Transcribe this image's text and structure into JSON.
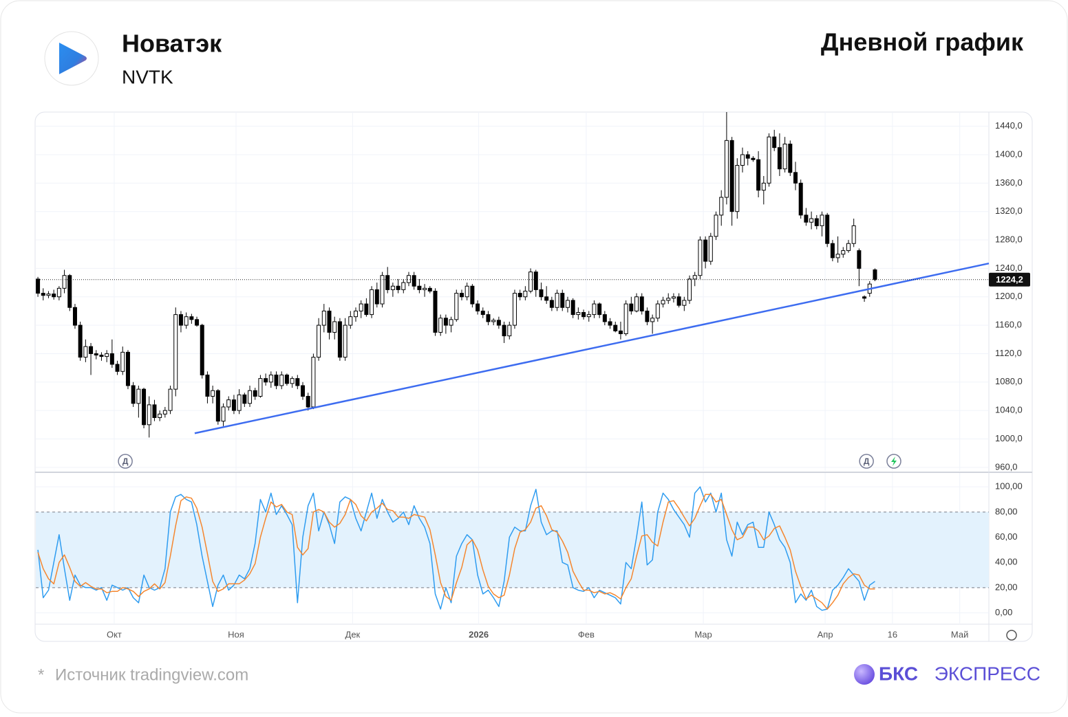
{
  "header": {
    "title": "Новатэк",
    "ticker": "NVTK",
    "subtitle": "Дневной график"
  },
  "footer": {
    "asterisk": "*",
    "source": "Источник tradingview.com",
    "brand_bold": "БКС",
    "brand": "ЭКСПРЕСС"
  },
  "chart_data": [
    {
      "type": "candlestick",
      "up_color": "#ffffff",
      "down_color": "#000000",
      "xlim": [
        -0.4,
        179.5
      ],
      "ylim": [
        955,
        1460
      ],
      "grid": true,
      "xticks": [
        {
          "value": 14.4,
          "label": "Окт"
        },
        {
          "value": 37.4,
          "label": "Ноя"
        },
        {
          "value": 59.4,
          "label": "Дек"
        },
        {
          "value": 83.2,
          "label": "2026"
        },
        {
          "value": 103.5,
          "label": "Фев"
        },
        {
          "value": 125.6,
          "label": "Мар"
        },
        {
          "value": 148.6,
          "label": "Апр"
        },
        {
          "value": 161.3,
          "label": "16"
        },
        {
          "value": 174,
          "label": "Май"
        }
      ],
      "yticks": [
        {
          "value": 960,
          "label": "960,0"
        },
        {
          "value": 1000,
          "label": "1000,0"
        },
        {
          "value": 1040,
          "label": "1040,0"
        },
        {
          "value": 1080,
          "label": "1080,0"
        },
        {
          "value": 1120,
          "label": "1120,0"
        },
        {
          "value": 1160,
          "label": "1160,0"
        },
        {
          "value": 1200,
          "label": "1200,0"
        },
        {
          "value": 1240,
          "label": "1240,0"
        },
        {
          "value": 1280,
          "label": "1280,0"
        },
        {
          "value": 1320,
          "label": "1320,0"
        },
        {
          "value": 1360,
          "label": "1360,0"
        },
        {
          "value": 1400,
          "label": "1400,0"
        },
        {
          "value": 1440,
          "label": "1440,0"
        }
      ],
      "last_value": {
        "value": 1224.2,
        "label": "1224,2"
      },
      "trendline": {
        "x": [
          29.6,
          179.5
        ],
        "y": [
          1008,
          1247
        ],
        "color": "#3d6cf0"
      },
      "markers": [
        {
          "label": "Д",
          "x": 16.5
        },
        {
          "label": "Д",
          "x": 156.4
        }
      ],
      "open": [
        1225,
        1205,
        1202,
        1204,
        1200,
        1212,
        1230,
        1185,
        1160,
        1115,
        1130,
        1120,
        1118,
        1116,
        1120,
        1105,
        1095,
        1122,
        1075,
        1050,
        1070,
        1020,
        1048,
        1030,
        1035,
        1040,
        1070,
        1175,
        1160,
        1172,
        1168,
        1160,
        1090,
        1060,
        1068,
        1025,
        1045,
        1055,
        1040,
        1062,
        1050,
        1068,
        1060,
        1085,
        1080,
        1090,
        1075,
        1090,
        1078,
        1085,
        1075,
        1060,
        1045,
        1115,
        1160,
        1180,
        1150,
        1165,
        1115,
        1160,
        1172,
        1180,
        1190,
        1175,
        1210,
        1190,
        1230,
        1210,
        1215,
        1210,
        1220,
        1230,
        1215,
        1210,
        1212,
        1208,
        1150,
        1170,
        1160,
        1168,
        1205,
        1200,
        1215,
        1190,
        1180,
        1175,
        1165,
        1167,
        1160,
        1145,
        1160,
        1205,
        1200,
        1208,
        1235,
        1210,
        1200,
        1195,
        1185,
        1205,
        1185,
        1195,
        1175,
        1178,
        1172,
        1175,
        1190,
        1175,
        1165,
        1160,
        1152,
        1148,
        1190,
        1180,
        1200,
        1180,
        1165,
        1170,
        1190,
        1195,
        1198,
        1200,
        1188,
        1195,
        1225,
        1230,
        1280,
        1250,
        1285,
        1315,
        1340,
        1420,
        1320,
        1385,
        1400,
        1395,
        1393,
        1350,
        1360,
        1425,
        1410,
        1380,
        1415,
        1375,
        1360,
        1315,
        1305,
        1310,
        1300,
        1315,
        1275,
        1255,
        1260,
        1265,
        1275,
        1265,
        1200,
        1205,
        1238
      ],
      "high": [
        1228,
        1212,
        1208,
        1210,
        1215,
        1238,
        1232,
        1190,
        1165,
        1140,
        1135,
        1125,
        1122,
        1125,
        1140,
        1110,
        1130,
        1125,
        1080,
        1075,
        1072,
        1060,
        1055,
        1040,
        1045,
        1075,
        1185,
        1180,
        1178,
        1176,
        1172,
        1162,
        1095,
        1075,
        1070,
        1050,
        1060,
        1062,
        1070,
        1065,
        1075,
        1072,
        1090,
        1092,
        1095,
        1095,
        1095,
        1092,
        1088,
        1090,
        1080,
        1065,
        1120,
        1170,
        1190,
        1185,
        1172,
        1170,
        1170,
        1180,
        1185,
        1195,
        1198,
        1215,
        1220,
        1235,
        1242,
        1220,
        1225,
        1225,
        1235,
        1235,
        1225,
        1218,
        1215,
        1212,
        1175,
        1175,
        1172,
        1210,
        1210,
        1220,
        1218,
        1195,
        1185,
        1180,
        1170,
        1172,
        1165,
        1165,
        1210,
        1210,
        1215,
        1240,
        1238,
        1220,
        1215,
        1200,
        1210,
        1210,
        1200,
        1198,
        1185,
        1182,
        1180,
        1195,
        1192,
        1180,
        1170,
        1165,
        1165,
        1195,
        1200,
        1205,
        1205,
        1185,
        1175,
        1195,
        1200,
        1205,
        1205,
        1205,
        1200,
        1230,
        1235,
        1285,
        1285,
        1290,
        1320,
        1350,
        1460,
        1425,
        1395,
        1410,
        1405,
        1398,
        1405,
        1370,
        1430,
        1435,
        1430,
        1425,
        1420,
        1390,
        1365,
        1325,
        1320,
        1315,
        1320,
        1318,
        1280,
        1285,
        1270,
        1280,
        1310,
        1268,
        1202,
        1222,
        1240
      ],
      "low": [
        1200,
        1195,
        1198,
        1196,
        1195,
        1205,
        1180,
        1155,
        1110,
        1108,
        1090,
        1112,
        1110,
        1108,
        1100,
        1090,
        1090,
        1070,
        1045,
        1030,
        1015,
        1002,
        1025,
        1025,
        1030,
        1035,
        1060,
        1150,
        1155,
        1162,
        1158,
        1085,
        1050,
        1050,
        1020,
        1018,
        1040,
        1035,
        1035,
        1045,
        1045,
        1055,
        1058,
        1075,
        1072,
        1070,
        1070,
        1075,
        1072,
        1070,
        1055,
        1040,
        1042,
        1110,
        1150,
        1140,
        1140,
        1110,
        1110,
        1155,
        1165,
        1170,
        1172,
        1170,
        1185,
        1185,
        1205,
        1200,
        1205,
        1205,
        1215,
        1210,
        1205,
        1200,
        1205,
        1145,
        1145,
        1148,
        1150,
        1165,
        1195,
        1195,
        1185,
        1175,
        1170,
        1160,
        1160,
        1155,
        1135,
        1140,
        1155,
        1195,
        1195,
        1205,
        1200,
        1195,
        1190,
        1180,
        1180,
        1180,
        1178,
        1170,
        1168,
        1168,
        1165,
        1170,
        1170,
        1160,
        1155,
        1150,
        1140,
        1145,
        1175,
        1178,
        1175,
        1160,
        1148,
        1165,
        1185,
        1190,
        1192,
        1185,
        1180,
        1190,
        1215,
        1225,
        1240,
        1245,
        1280,
        1300,
        1330,
        1300,
        1310,
        1375,
        1385,
        1390,
        1340,
        1330,
        1355,
        1405,
        1370,
        1375,
        1370,
        1350,
        1310,
        1300,
        1295,
        1295,
        1285,
        1270,
        1250,
        1248,
        1255,
        1262,
        1270,
        1215,
        1193,
        1200,
        1222
      ],
      "close": [
        1205,
        1202,
        1204,
        1200,
        1212,
        1230,
        1185,
        1160,
        1115,
        1130,
        1120,
        1118,
        1116,
        1120,
        1105,
        1095,
        1122,
        1075,
        1050,
        1070,
        1020,
        1048,
        1030,
        1035,
        1040,
        1070,
        1175,
        1160,
        1172,
        1168,
        1160,
        1090,
        1060,
        1068,
        1025,
        1045,
        1055,
        1040,
        1062,
        1050,
        1068,
        1060,
        1085,
        1080,
        1090,
        1075,
        1090,
        1078,
        1085,
        1075,
        1060,
        1045,
        1115,
        1160,
        1180,
        1150,
        1165,
        1115,
        1160,
        1172,
        1180,
        1190,
        1175,
        1210,
        1190,
        1230,
        1210,
        1215,
        1210,
        1220,
        1230,
        1215,
        1210,
        1212,
        1208,
        1150,
        1170,
        1160,
        1168,
        1205,
        1200,
        1215,
        1190,
        1180,
        1175,
        1165,
        1167,
        1160,
        1145,
        1160,
        1205,
        1200,
        1208,
        1235,
        1210,
        1200,
        1195,
        1185,
        1205,
        1185,
        1195,
        1175,
        1178,
        1172,
        1175,
        1190,
        1175,
        1165,
        1160,
        1152,
        1148,
        1190,
        1180,
        1200,
        1180,
        1165,
        1170,
        1190,
        1195,
        1198,
        1200,
        1188,
        1195,
        1225,
        1230,
        1280,
        1250,
        1285,
        1315,
        1340,
        1420,
        1320,
        1385,
        1400,
        1395,
        1393,
        1350,
        1360,
        1425,
        1410,
        1380,
        1415,
        1375,
        1360,
        1315,
        1305,
        1310,
        1300,
        1315,
        1275,
        1255,
        1260,
        1265,
        1275,
        1300,
        1240,
        1198,
        1218,
        1224.2
      ]
    },
    {
      "type": "line",
      "xlim": [
        -0.4,
        179.5
      ],
      "ylim": [
        -9,
        111
      ],
      "grid": true,
      "band": {
        "values": [
          20,
          80
        ],
        "color": "#e3f2fd"
      },
      "yticks": [
        {
          "value": 0,
          "label": "0,00"
        },
        {
          "value": 20,
          "label": "20,00"
        },
        {
          "value": 40,
          "label": "40,00"
        },
        {
          "value": 60,
          "label": "60,00"
        },
        {
          "value": 80,
          "label": "80,00"
        },
        {
          "value": 100,
          "label": "100,00"
        }
      ],
      "series": [
        {
          "color": "#2e9cf0",
          "values": [
            50,
            12,
            18,
            40,
            62,
            35,
            10,
            30,
            22,
            20,
            20,
            18,
            20,
            10,
            22,
            20,
            18,
            20,
            12,
            8,
            30,
            20,
            18,
            20,
            35,
            80,
            92,
            94,
            90,
            88,
            70,
            45,
            25,
            5,
            22,
            30,
            18,
            22,
            30,
            27,
            35,
            55,
            90,
            80,
            95,
            78,
            85,
            78,
            70,
            8,
            60,
            85,
            95,
            65,
            80,
            70,
            55,
            88,
            92,
            90,
            75,
            65,
            80,
            95,
            75,
            90,
            80,
            72,
            75,
            80,
            70,
            85,
            75,
            68,
            55,
            15,
            3,
            20,
            8,
            45,
            55,
            62,
            58,
            30,
            15,
            18,
            12,
            5,
            25,
            60,
            68,
            65,
            65,
            85,
            98,
            72,
            62,
            65,
            65,
            40,
            38,
            20,
            18,
            17,
            20,
            12,
            18,
            16,
            14,
            12,
            7,
            40,
            35,
            60,
            88,
            38,
            42,
            80,
            95,
            90,
            82,
            76,
            70,
            60,
            95,
            100,
            88,
            95,
            80,
            95,
            58,
            45,
            72,
            62,
            70,
            72,
            52,
            52,
            80,
            70,
            58,
            52,
            40,
            8,
            15,
            10,
            18,
            5,
            2,
            3,
            18,
            22,
            28,
            35,
            30,
            25,
            10,
            22,
            25
          ]
        },
        {
          "color": "#f5862e",
          "values": [
            48,
            35,
            27,
            23,
            40,
            46,
            36,
            25,
            21,
            24,
            21,
            19,
            19,
            16,
            17,
            17,
            20,
            19,
            17,
            13,
            17,
            19,
            23,
            19,
            24,
            45,
            69,
            89,
            92,
            91,
            83,
            68,
            47,
            25,
            17,
            19,
            23,
            23,
            23,
            26,
            31,
            39,
            60,
            75,
            88,
            84,
            86,
            80,
            78,
            52,
            46,
            51,
            80,
            82,
            80,
            72,
            68,
            71,
            78,
            90,
            86,
            77,
            73,
            80,
            83,
            87,
            82,
            81,
            76,
            76,
            75,
            78,
            77,
            76,
            66,
            46,
            24,
            13,
            10,
            24,
            36,
            54,
            58,
            50,
            34,
            21,
            15,
            12,
            14,
            30,
            51,
            64,
            66,
            72,
            83,
            85,
            77,
            66,
            64,
            57,
            48,
            33,
            25,
            18,
            18,
            16,
            17,
            15,
            16,
            14,
            11,
            20,
            27,
            45,
            61,
            62,
            56,
            53,
            72,
            88,
            89,
            83,
            76,
            69,
            75,
            85,
            94,
            94,
            88,
            90,
            78,
            66,
            58,
            60,
            68,
            68,
            65,
            58,
            61,
            67,
            69,
            60,
            50,
            33,
            21,
            11,
            14,
            11,
            8,
            3,
            8,
            14,
            23,
            28,
            31,
            30,
            22,
            19,
            19
          ]
        }
      ]
    }
  ]
}
